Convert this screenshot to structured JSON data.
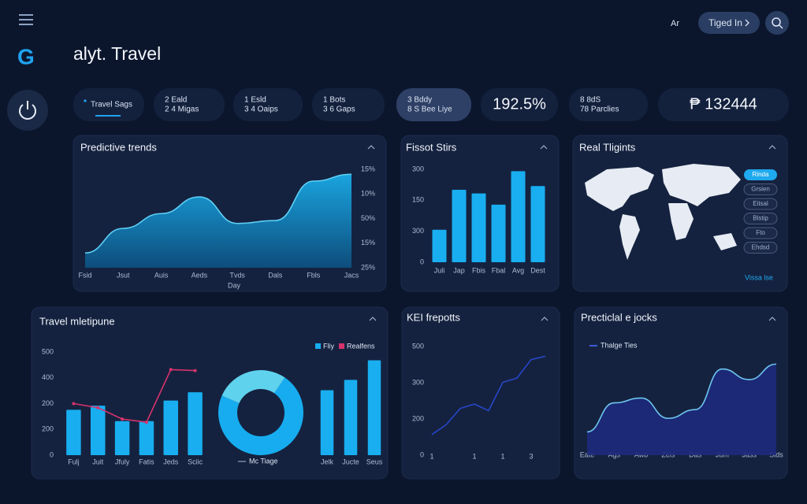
{
  "header": {
    "logo": "G",
    "title": "alyt. Travel",
    "lang": "Ar",
    "button": "Tiged In"
  },
  "tabs": [
    {
      "lines": [
        "Travel Sags"
      ]
    },
    {
      "lines": [
        "2 Eald",
        "2 4 Migas"
      ]
    },
    {
      "lines": [
        "1 Esld",
        "3 4 Oaips"
      ]
    },
    {
      "lines": [
        "1 Bots",
        "3 6 Gaps"
      ]
    },
    {
      "lines": [
        "3 Bddy",
        "8 S Bee Liye"
      ]
    },
    {
      "lines": [
        "192.5%"
      ]
    },
    {
      "lines": [
        "8 8dS",
        "78 Parclies"
      ]
    },
    {
      "lines": [
        "₱ 132444"
      ]
    }
  ],
  "chart_data": [
    {
      "type": "area",
      "title": "Predictive trends",
      "categories": [
        "Fsid",
        "Jsut",
        "Auis",
        "Aeds",
        "Tvds",
        "Dals",
        "Fbls",
        "Jacs"
      ],
      "x_label": "Day",
      "y_labels": [
        "25%",
        "15%",
        "50%",
        "10%",
        "15%"
      ],
      "ylim": [
        0,
        100
      ],
      "values": [
        15,
        40,
        55,
        72,
        45,
        48,
        88,
        95
      ],
      "color": "#1a9fd8"
    },
    {
      "type": "bar",
      "title": "Fissot Stirs",
      "categories": [
        "Juli",
        "Jap",
        "Fbis",
        "Fbal",
        "Avg",
        "Dest"
      ],
      "y_labels": [
        "0",
        "300",
        "150",
        "300"
      ],
      "ylim": [
        0,
        100
      ],
      "values": [
        35,
        78,
        74,
        62,
        98,
        82
      ],
      "color": "#18aef0"
    },
    {
      "type": "map",
      "title": "Real Tligints",
      "regions": [
        "Rinda",
        "Grsien",
        "Eitsal",
        "Blstip",
        "Fto",
        "Ehdsd"
      ],
      "link": "Vissa lse"
    },
    {
      "type": "combo",
      "title": "Travel mletipune",
      "categories": [
        "Fulj",
        "Juit",
        "Jfuly",
        "Fatis",
        "Jeds",
        "Sciic"
      ],
      "y_labels": [
        "0",
        "200",
        "200",
        "400",
        "500"
      ],
      "ylim": [
        0,
        100
      ],
      "series": [
        {
          "name": "Fliy",
          "kind": "bar",
          "color": "#18aef0",
          "values": [
            44,
            48,
            33,
            33,
            53,
            61
          ]
        },
        {
          "name": "Realfens",
          "kind": "line",
          "color": "#d6336c",
          "values": [
            50,
            46,
            35,
            32,
            83,
            82
          ]
        }
      ]
    },
    {
      "type": "pie",
      "label": "Mc Tiage",
      "values": [
        72,
        28
      ],
      "colors": [
        "#17acef",
        "#5fd2ee"
      ]
    },
    {
      "type": "bar",
      "categories": [
        "Jelk",
        "Jucte",
        "Seus"
      ],
      "ylim": [
        0,
        100
      ],
      "values": [
        63,
        73,
        92
      ],
      "color": "#18aef0"
    },
    {
      "type": "line",
      "title": "KEI frepotts",
      "categories": [
        "1",
        null,
        null,
        "1",
        null,
        "1",
        null,
        "3",
        null
      ],
      "y_labels": [
        "0",
        "200",
        "300",
        "500"
      ],
      "ylim": [
        0,
        100
      ],
      "values": [
        19,
        28,
        43,
        47,
        41,
        67,
        71,
        88,
        91
      ],
      "color": "#2746c8"
    },
    {
      "type": "area",
      "title": "Precticlal e jocks",
      "categories": [
        "Eate",
        "Ags",
        "Awb",
        "Zeis",
        "Das",
        "Jum",
        "Jass",
        "Slds"
      ],
      "ylim": [
        0,
        100
      ],
      "name": "Thalge Ties",
      "values": [
        24,
        54,
        59,
        38,
        47,
        89,
        78,
        94
      ],
      "color": "#6ec6f0"
    }
  ]
}
